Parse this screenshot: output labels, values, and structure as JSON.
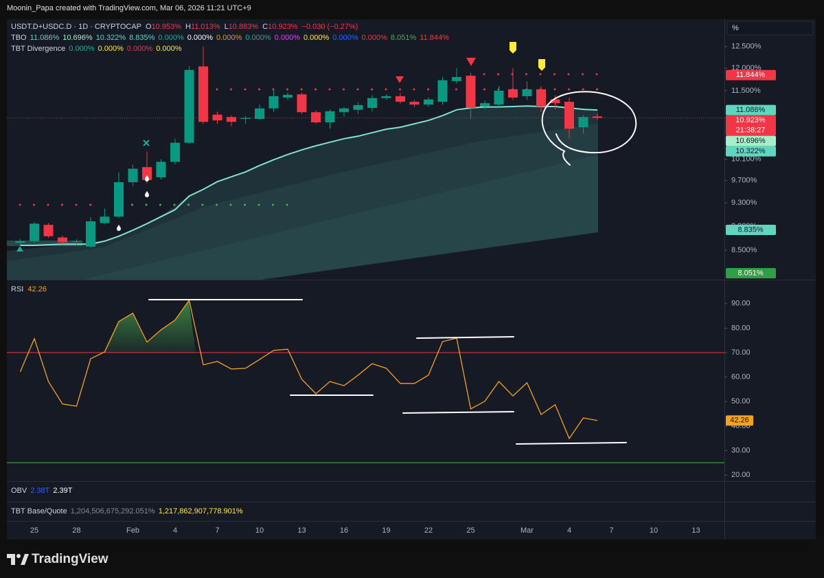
{
  "header": {
    "credit": "Moonin_Papa created with TradingView.com, Mar 06, 2026 11:21 UTC+9"
  },
  "legend": {
    "symbol": "USDT.D+USDC.D · 1D · CRYPTOCAP",
    "ohlc_color": "#f23645",
    "ohlc": [
      {
        "label": "O",
        "value": "10.953%"
      },
      {
        "label": "H",
        "value": "11.013%"
      },
      {
        "label": "L",
        "value": "10.883%"
      },
      {
        "label": "C",
        "value": "10.923%"
      },
      {
        "value": "−0.030 (−0.27%)"
      }
    ],
    "tbo": {
      "label": "TBO",
      "items": [
        {
          "text": "11.086%",
          "color": "#5ed6c0"
        },
        {
          "text": "10.696%",
          "color": "#a5f0c8"
        },
        {
          "text": "10.322%",
          "color": "#5ed6c0"
        },
        {
          "text": "8.835%",
          "color": "#5ed6c0"
        },
        {
          "text": "0.000%",
          "color": "#22ab94"
        },
        {
          "text": "0.000%",
          "color": "#ffffff"
        },
        {
          "text": "0.000%",
          "color": "#ff9800"
        },
        {
          "text": "0.000%",
          "color": "#22ab94"
        },
        {
          "text": "0.000%",
          "color": "#e040fb"
        },
        {
          "text": "0.000%",
          "color": "#ffeb3b"
        },
        {
          "text": "0.000%",
          "color": "#2962ff"
        },
        {
          "text": "0.000%",
          "color": "#f23645"
        },
        {
          "text": "8.051%",
          "color": "#4caf50"
        },
        {
          "text": "11.844%",
          "color": "#f23645"
        }
      ]
    },
    "divergence": {
      "label": "TBT Divergence",
      "items": [
        {
          "text": "0.000%",
          "color": "#22ab94"
        },
        {
          "text": "0.000%",
          "color": "#ffeb3b"
        },
        {
          "text": "0.000%",
          "color": "#f23645"
        },
        {
          "text": "0.000%",
          "color": "#ffeb3b"
        }
      ]
    },
    "obv": {
      "label": "OBV",
      "items": [
        {
          "text": "2.38T",
          "color": "#2962ff"
        },
        {
          "text": "2.39T",
          "color": "#ffffff"
        }
      ]
    },
    "tbt": {
      "label": "TBT Base/Quote",
      "items": [
        {
          "text": "1,204,506,675,292.051%",
          "color": "#868993"
        },
        {
          "text": "1,217,862,907,778.901%",
          "color": "#ffeb3b"
        }
      ]
    }
  },
  "axis_unit": "%",
  "footer": {
    "brand": "TradingView"
  },
  "chart_data": [
    {
      "type": "candlestick",
      "log_scale": true,
      "up_color": "#089981",
      "down_color": "#f23645",
      "categories": [
        null,
        "25",
        null,
        null,
        "28",
        null,
        null,
        null,
        "Feb",
        null,
        null,
        "4",
        null,
        null,
        "7",
        null,
        null,
        "10",
        null,
        null,
        "13",
        null,
        null,
        "16",
        null,
        null,
        "19",
        null,
        null,
        "22",
        null,
        null,
        "25",
        null,
        null,
        null,
        "Mar",
        null,
        null,
        "4",
        null,
        null,
        "7",
        null,
        null,
        "10",
        null,
        null,
        "13",
        null
      ],
      "open": [
        8.62,
        8.65,
        8.92,
        8.71,
        8.64,
        8.56,
        8.95,
        9.06,
        9.67,
        9.95,
        9.76,
        10.05,
        10.42,
        12.04,
        10.99,
        10.94,
        10.9,
        10.9,
        11.12,
        11.35,
        11.42,
        11.04,
        10.83,
        11.04,
        11.09,
        11.13,
        11.34,
        11.38,
        11.26,
        11.2,
        11.26,
        11.71,
        11.83,
        11.16,
        11.2,
        11.53,
        11.38,
        11.53,
        11.31,
        11.26,
        10.73,
        10.953,
        null,
        null,
        null,
        null,
        null,
        null,
        null,
        null
      ],
      "high": [
        8.68,
        8.97,
        8.95,
        8.74,
        8.68,
        9.05,
        9.2,
        9.85,
        10.0,
        10.25,
        10.1,
        10.5,
        12.05,
        12.5,
        11.05,
        10.98,
        10.96,
        11.2,
        11.52,
        11.46,
        11.46,
        11.08,
        11.1,
        11.15,
        11.25,
        11.4,
        11.42,
        11.45,
        11.3,
        11.35,
        11.8,
        12.0,
        11.9,
        11.28,
        11.6,
        12.0,
        11.7,
        11.6,
        11.4,
        11.35,
        10.98,
        11.013,
        null,
        null,
        null,
        null,
        null,
        null,
        null,
        null
      ],
      "low": [
        8.58,
        8.62,
        8.7,
        8.6,
        8.58,
        8.54,
        8.93,
        9.04,
        9.6,
        9.65,
        9.72,
        10.0,
        10.4,
        10.8,
        10.8,
        10.75,
        10.8,
        10.88,
        11.05,
        11.3,
        11.0,
        10.8,
        10.7,
        10.95,
        11.0,
        11.05,
        11.3,
        11.22,
        11.15,
        11.15,
        11.2,
        11.65,
        10.9,
        11.1,
        11.15,
        11.3,
        11.3,
        11.05,
        11.1,
        10.5,
        10.6,
        10.883,
        null,
        null,
        null,
        null,
        null,
        null,
        null,
        null
      ],
      "close": [
        8.65,
        8.94,
        8.73,
        8.63,
        8.65,
        8.98,
        9.06,
        9.67,
        9.92,
        9.71,
        10.05,
        10.42,
        11.96,
        10.84,
        10.87,
        10.84,
        10.92,
        11.12,
        11.38,
        11.41,
        11.04,
        10.83,
        11.06,
        11.12,
        11.19,
        11.34,
        11.38,
        11.26,
        11.2,
        11.31,
        11.73,
        11.8,
        11.13,
        11.23,
        11.5,
        11.35,
        11.53,
        11.16,
        11.23,
        10.7,
        10.94,
        10.923,
        null,
        null,
        null,
        null,
        null,
        null,
        null,
        null
      ],
      "tbo_line": {
        "color": "#7fe3cf",
        "values": [
          8.58,
          8.58,
          8.59,
          8.6,
          8.6,
          8.6,
          8.65,
          8.73,
          8.83,
          8.94,
          9.06,
          9.18,
          9.42,
          9.54,
          9.68,
          9.77,
          9.86,
          9.98,
          10.09,
          10.19,
          10.28,
          10.36,
          10.43,
          10.5,
          10.55,
          10.62,
          10.69,
          10.73,
          10.8,
          10.87,
          10.97,
          11.09,
          11.13,
          11.15,
          11.15,
          11.16,
          11.17,
          11.16,
          11.16,
          11.13,
          11.1,
          11.086,
          null,
          null,
          null,
          null,
          null,
          null,
          null,
          null
        ]
      },
      "ylim": [
        8.04,
        13.13
      ],
      "yticks": [
        {
          "value": 12.5,
          "label": "12.500%"
        },
        {
          "value": 12.0,
          "label": "12.000%"
        },
        {
          "value": 11.5,
          "label": "11.500%"
        },
        {
          "value": 10.1,
          "label": "10.100%"
        },
        {
          "value": 9.7,
          "label": "9.700%"
        },
        {
          "value": 9.3,
          "label": "9.300%"
        },
        {
          "value": 8.9,
          "label": "8.900%"
        },
        {
          "value": 8.5,
          "label": "8.500%"
        }
      ],
      "price_labels": [
        {
          "value": 11.844,
          "label": "11.844%",
          "color": "#f23645",
          "text_color": "#ffffff"
        },
        {
          "value": 11.086,
          "label": "11.086%",
          "color": "#5ed6c0",
          "text_color": "#131722"
        },
        {
          "value": 10.923,
          "label": "10.923%",
          "time": "21:38:27",
          "color": "#f23645",
          "text_color": "#ffffff"
        },
        {
          "value": 10.696,
          "label": "10.696%",
          "color": "#a5f0c8",
          "text_color": "#131722"
        },
        {
          "value": 10.322,
          "label": "10.322%",
          "color": "#5ed6c0",
          "text_color": "#131722"
        },
        {
          "value": 8.835,
          "label": "8.835%",
          "color": "#5ed6c0",
          "text_color": "#131722"
        },
        {
          "value": 8.051,
          "label": "8.051%",
          "color": "#2ea043",
          "text_color": "#ffffff"
        }
      ]
    },
    {
      "type": "line",
      "title": "RSI",
      "color": "#f7a21b",
      "values": [
        62.2,
        75.7,
        58.2,
        49.0,
        48.1,
        67.5,
        70.3,
        82.7,
        86.1,
        74.3,
        79.3,
        83.3,
        91.4,
        65.0,
        66.4,
        63.3,
        63.6,
        67.2,
        70.9,
        71.4,
        59.1,
        53.2,
        58.2,
        56.5,
        60.8,
        65.5,
        63.6,
        57.4,
        57.4,
        60.8,
        74.5,
        75.9,
        47.0,
        50.1,
        58.2,
        52.3,
        57.7,
        44.7,
        48.7,
        34.9,
        43.3,
        42.26,
        null,
        null,
        null,
        null,
        null,
        null,
        null,
        null
      ],
      "value_labels": {
        "41": "42.26"
      },
      "levels": [
        {
          "value": 70,
          "color": "#f23645"
        },
        {
          "value": 25,
          "color": "#4caf50"
        }
      ],
      "ylim": [
        17.5,
        99.5
      ],
      "yticks": [
        {
          "value": 90,
          "label": "90.00"
        },
        {
          "value": 80,
          "label": "80.00"
        },
        {
          "value": 70,
          "label": "70.00"
        },
        {
          "value": 60,
          "label": "60.00"
        },
        {
          "value": 50,
          "label": "50.00"
        },
        {
          "value": 40,
          "label": "40.00"
        },
        {
          "value": 30,
          "label": "30.00"
        },
        {
          "value": 20,
          "label": "20.00"
        }
      ]
    }
  ]
}
